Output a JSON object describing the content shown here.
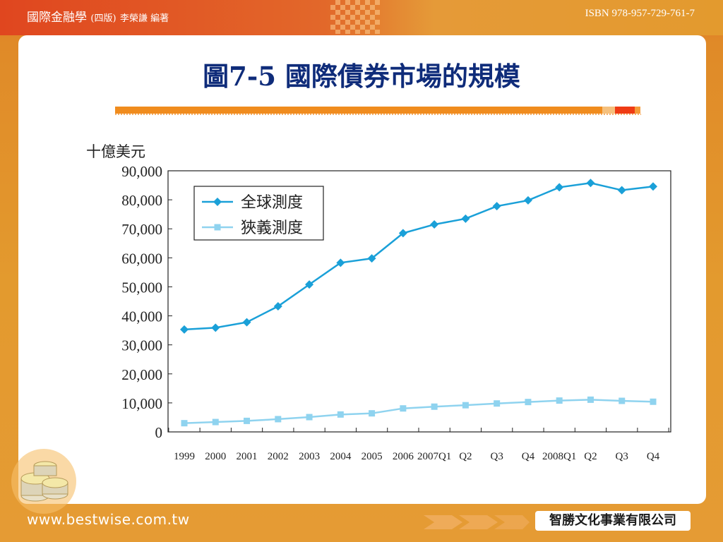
{
  "header": {
    "book_title": "國際金融學",
    "edition": "(四版)",
    "author": "李榮謙 編著",
    "isbn": "ISBN 978-957-729-761-7"
  },
  "slide": {
    "title": "圖7-5 國際債券市場的規模"
  },
  "footer": {
    "url": "www.bestwise.com.tw",
    "publisher": "智勝文化事業有限公司"
  },
  "colors": {
    "global": "#1aa0d8",
    "narrow": "#8fd3ef",
    "title": "#0f2c7a",
    "accent": "#f08c1e"
  },
  "chart_data": {
    "type": "line",
    "ylabel": "十億美元",
    "ylim": [
      0,
      90000
    ],
    "yticks": [
      "0",
      "10,000",
      "20,000",
      "30,000",
      "40,000",
      "50,000",
      "60,000",
      "70,000",
      "80,000",
      "90,000"
    ],
    "categories": [
      "1999",
      "2000",
      "2001",
      "2002",
      "2003",
      "2004",
      "2005",
      "2006",
      "2007Q1",
      "Q2",
      "Q3",
      "Q4",
      "2008Q1",
      "Q2",
      "Q3",
      "Q4"
    ],
    "series": [
      {
        "name": "全球測度",
        "marker": "diamond",
        "values": [
          35300,
          35900,
          37800,
          43300,
          50800,
          58300,
          59800,
          68500,
          71500,
          73500,
          77800,
          79800,
          84300,
          85800,
          83300,
          84600
        ]
      },
      {
        "name": "狹義測度",
        "marker": "square",
        "values": [
          3000,
          3400,
          3800,
          4400,
          5100,
          6000,
          6400,
          8100,
          8700,
          9200,
          9800,
          10300,
          10800,
          11100,
          10700,
          10400
        ]
      }
    ],
    "legend_position": "top-left",
    "grid": false
  }
}
